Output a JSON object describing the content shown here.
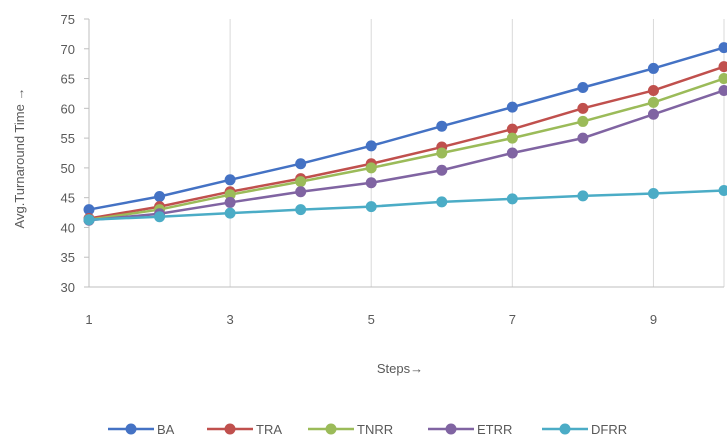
{
  "chart_data": {
    "type": "line",
    "title": "",
    "xlabel": "Steps→",
    "ylabel": "Avg.Turnaround Time →",
    "x": [
      1,
      2,
      3,
      4,
      5,
      6,
      7,
      8,
      9,
      10
    ],
    "xlim": [
      1,
      10
    ],
    "ylim": [
      30,
      75
    ],
    "x_ticks": [
      "1",
      "3",
      "5",
      "7",
      "9"
    ],
    "x_tick_values": [
      1,
      3,
      5,
      7,
      9
    ],
    "y_ticks": [
      "30",
      "35",
      "40",
      "45",
      "50",
      "55",
      "60",
      "65",
      "70",
      "75"
    ],
    "y_tick_values": [
      30,
      35,
      40,
      45,
      50,
      55,
      60,
      65,
      70,
      75
    ],
    "grid": "vertical",
    "legend_position": "bottom",
    "series": [
      {
        "name": "BA",
        "color": "#4472c4",
        "values": [
          43,
          45.2,
          48,
          50.7,
          53.7,
          57,
          60.2,
          63.5,
          66.7,
          70.2
        ]
      },
      {
        "name": "TRA",
        "color": "#c0504d",
        "values": [
          41.5,
          43.5,
          46,
          48.2,
          50.7,
          53.5,
          56.5,
          60,
          63,
          67
        ]
      },
      {
        "name": "TNRR",
        "color": "#9bbb59",
        "values": [
          41.3,
          43,
          45.5,
          47.7,
          50,
          52.5,
          55,
          57.8,
          61,
          65
        ]
      },
      {
        "name": "ETRR",
        "color": "#8064a2",
        "values": [
          41.2,
          42.3,
          44.2,
          46,
          47.5,
          49.6,
          52.5,
          55,
          59,
          63
        ]
      },
      {
        "name": "DFRR",
        "color": "#4bacc6",
        "values": [
          41.3,
          41.8,
          42.4,
          43,
          43.5,
          44.3,
          44.8,
          45.3,
          45.7,
          46.2
        ]
      }
    ]
  }
}
